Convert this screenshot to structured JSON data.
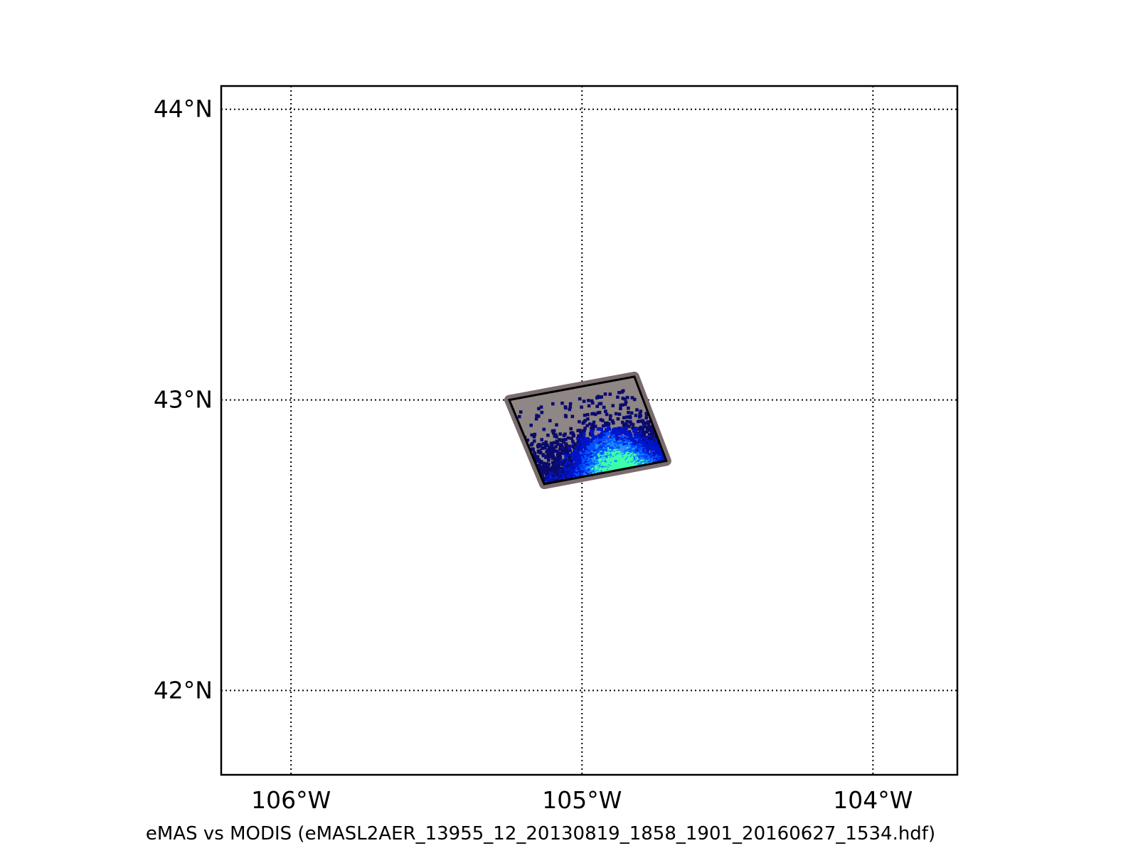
{
  "caption": "eMAS vs MODIS (eMASL2AER_13955_12_20130819_1858_1901_20160627_1534.hdf)",
  "map": {
    "extent": {
      "lon_min": -106.24,
      "lon_max": -103.71,
      "lat_min": 41.71,
      "lat_max": 44.08
    },
    "meridians": [
      {
        "lon": -106,
        "label": "106°W"
      },
      {
        "lon": -105,
        "label": "105°W"
      },
      {
        "lon": -104,
        "label": "104°W"
      }
    ],
    "parallels": [
      {
        "lat": 44,
        "label": "44°N"
      },
      {
        "lat": 43,
        "label": "43°N"
      },
      {
        "lat": 42,
        "label": "42°N"
      }
    ],
    "grid_style": "dotted",
    "swath": {
      "corners": [
        {
          "lon": -105.25,
          "lat": 43.0
        },
        {
          "lon": -104.82,
          "lat": 43.08
        },
        {
          "lon": -104.71,
          "lat": 42.79
        },
        {
          "lon": -105.13,
          "lat": 42.71
        }
      ],
      "outline_color": "#000000",
      "halo_color": "#7a6c6e",
      "background_color": "#8f8785",
      "colormap": [
        "#0a0a6e",
        "#0014c8",
        "#0050ff",
        "#1e90ff",
        "#3cffaa"
      ]
    }
  }
}
